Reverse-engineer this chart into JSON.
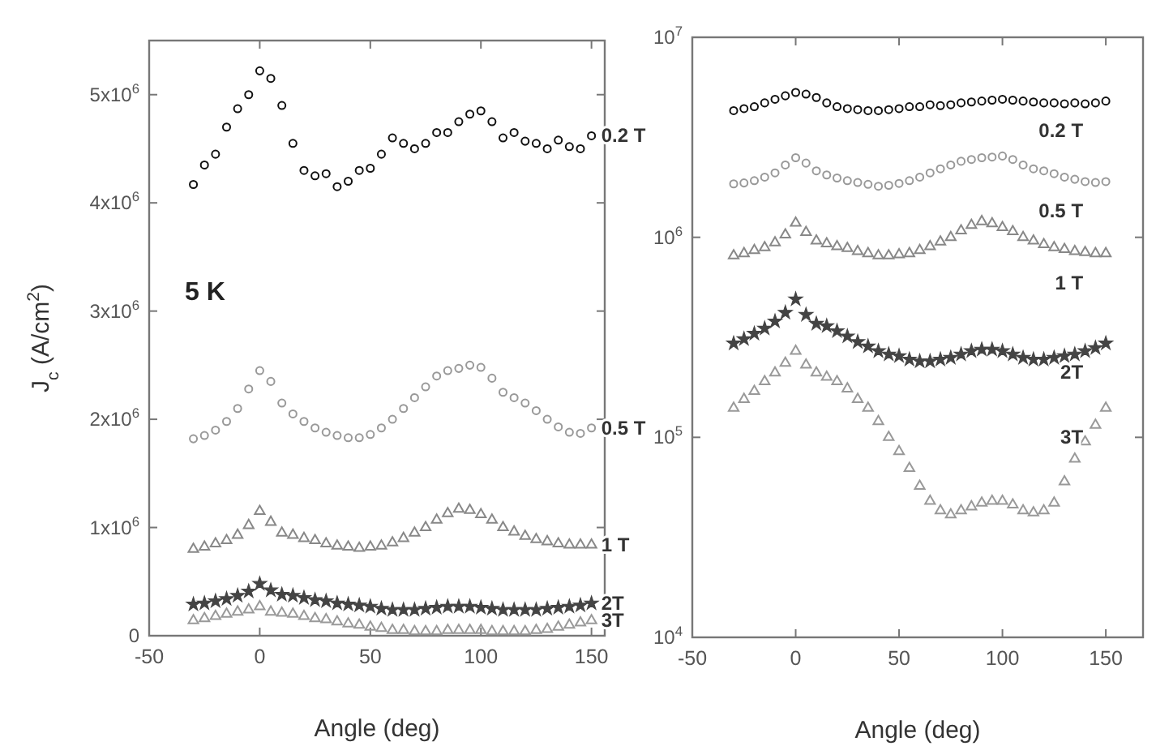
{
  "chart_data": [
    {
      "type": "scatter",
      "xlabel": "Angle (deg)",
      "ylabel": "J$_{c}$ (A/cm$^{2}$)",
      "annotations": [
        "5 K"
      ],
      "xlim": [
        -50,
        156
      ],
      "xticks": [
        -50,
        0,
        50,
        100,
        150
      ],
      "ylim": [
        0,
        5500000.0
      ],
      "yticks": [
        0,
        {
          "value": 1000000.0,
          "label": "1x10$^{6}$"
        },
        {
          "value": 2000000.0,
          "label": "2x10$^{6}$"
        },
        {
          "value": 3000000.0,
          "label": "3x10$^{6}$"
        },
        {
          "value": 4000000.0,
          "label": "4x10$^{6}$"
        },
        {
          "value": 5000000.0,
          "label": "5x10$^{6}$"
        }
      ],
      "grid": false,
      "x": [
        -30,
        -25,
        -20,
        -15,
        -10,
        -5,
        0,
        5,
        10,
        15,
        20,
        25,
        30,
        35,
        40,
        45,
        50,
        55,
        60,
        65,
        70,
        75,
        80,
        85,
        90,
        95,
        100,
        105,
        110,
        115,
        120,
        125,
        130,
        135,
        140,
        145,
        150
      ],
      "series": [
        {
          "name": "0.2 T",
          "color": "#111111",
          "marker": "circle",
          "values": [
            4170000.0,
            4350000.0,
            4450000.0,
            4700000.0,
            4870000.0,
            5000000.0,
            5220000.0,
            5150000.0,
            4900000.0,
            4550000.0,
            4300000.0,
            4250000.0,
            4270000.0,
            4150000.0,
            4200000.0,
            4300000.0,
            4320000.0,
            4450000.0,
            4600000.0,
            4550000.0,
            4500000.0,
            4550000.0,
            4650000.0,
            4650000.0,
            4750000.0,
            4820000.0,
            4850000.0,
            4750000.0,
            4600000.0,
            4650000.0,
            4570000.0,
            4550000.0,
            4500000.0,
            4580000.0,
            4520000.0,
            4500000.0,
            4620000.0
          ]
        },
        {
          "name": "0.5 T",
          "color": "#999999",
          "marker": "circle",
          "values": [
            1820000.0,
            1850000.0,
            1900000.0,
            1980000.0,
            2100000.0,
            2280000.0,
            2450000.0,
            2350000.0,
            2150000.0,
            2050000.0,
            1980000.0,
            1920000.0,
            1880000.0,
            1850000.0,
            1830000.0,
            1830000.0,
            1860000.0,
            1920000.0,
            2000000.0,
            2100000.0,
            2200000.0,
            2300000.0,
            2400000.0,
            2450000.0,
            2470000.0,
            2500000.0,
            2480000.0,
            2380000.0,
            2250000.0,
            2200000.0,
            2150000.0,
            2080000.0,
            2000000.0,
            1930000.0,
            1880000.0,
            1870000.0,
            1920000.0
          ]
        },
        {
          "name": "1 T",
          "color": "#888888",
          "marker": "triangle",
          "values": [
            800000.0,
            820000.0,
            850000.0,
            880000.0,
            930000.0,
            1020000.0,
            1150000.0,
            1050000.0,
            950000.0,
            930000.0,
            900000.0,
            880000.0,
            850000.0,
            830000.0,
            820000.0,
            810000.0,
            820000.0,
            830000.0,
            860000.0,
            900000.0,
            950000.0,
            1000000.0,
            1070000.0,
            1130000.0,
            1170000.0,
            1160000.0,
            1120000.0,
            1070000.0,
            1000000.0,
            960000.0,
            920000.0,
            890000.0,
            870000.0,
            850000.0,
            840000.0,
            840000.0,
            840000.0
          ]
        },
        {
          "name": "2T",
          "color": "#444444",
          "marker": "star",
          "values": [
            290000.0,
            300000.0,
            320000.0,
            340000.0,
            370000.0,
            410000.0,
            480000.0,
            420000.0,
            380000.0,
            370000.0,
            350000.0,
            330000.0,
            320000.0,
            300000.0,
            290000.0,
            280000.0,
            270000.0,
            250000.0,
            240000.0,
            240000.0,
            240000.0,
            250000.0,
            260000.0,
            270000.0,
            270000.0,
            270000.0,
            260000.0,
            250000.0,
            240000.0,
            240000.0,
            240000.0,
            240000.0,
            250000.0,
            260000.0,
            270000.0,
            280000.0,
            300000.0
          ]
        },
        {
          "name": "3T",
          "color": "#999999",
          "marker": "triangle",
          "values": [
            140000.0,
            160000.0,
            180000.0,
            200000.0,
            220000.0,
            240000.0,
            270000.0,
            220000.0,
            210000.0,
            200000.0,
            180000.0,
            160000.0,
            150000.0,
            130000.0,
            110000.0,
            100000.0,
            80000.0,
            70000.0,
            50000.0,
            50000.0,
            40000.0,
            40000.0,
            40000.0,
            50000.0,
            50000.0,
            50000.0,
            50000.0,
            40000.0,
            40000.0,
            40000.0,
            40000.0,
            50000.0,
            60000.0,
            80000.0,
            100000.0,
            120000.0,
            140000.0
          ]
        }
      ]
    },
    {
      "type": "scatter",
      "xlabel": "Angle (deg)",
      "log": "y",
      "xlim": [
        -50,
        168
      ],
      "xticks": [
        -50,
        0,
        50,
        100,
        150
      ],
      "ylim": [
        10000.0,
        10000000.0
      ],
      "yticks": [
        {
          "value": 10000.0,
          "label": "10$^{4}$"
        },
        {
          "value": 100000.0,
          "label": "10$^{5}$"
        },
        {
          "value": 1000000.0,
          "label": "10$^{6}$"
        },
        {
          "value": 10000000.0,
          "label": "10$^{7}$"
        }
      ],
      "grid": false,
      "x": [
        -30,
        -25,
        -20,
        -15,
        -10,
        -5,
        0,
        5,
        10,
        15,
        20,
        25,
        30,
        35,
        40,
        45,
        50,
        55,
        60,
        65,
        70,
        75,
        80,
        85,
        90,
        95,
        100,
        105,
        110,
        115,
        120,
        125,
        130,
        135,
        140,
        145,
        150
      ],
      "series": [
        {
          "name": "0.2 T",
          "color": "#111111",
          "marker": "circle",
          "values": [
            4300000.0,
            4400000.0,
            4500000.0,
            4700000.0,
            4900000.0,
            5100000.0,
            5300000.0,
            5200000.0,
            5000000.0,
            4700000.0,
            4500000.0,
            4400000.0,
            4350000.0,
            4300000.0,
            4300000.0,
            4350000.0,
            4400000.0,
            4500000.0,
            4500000.0,
            4600000.0,
            4550000.0,
            4600000.0,
            4700000.0,
            4750000.0,
            4800000.0,
            4850000.0,
            4900000.0,
            4850000.0,
            4800000.0,
            4750000.0,
            4700000.0,
            4700000.0,
            4650000.0,
            4700000.0,
            4650000.0,
            4700000.0,
            4800000.0
          ]
        },
        {
          "name": "0.5 T",
          "color": "#999999",
          "marker": "circle",
          "values": [
            1850000.0,
            1870000.0,
            1920000.0,
            2000000.0,
            2100000.0,
            2300000.0,
            2500000.0,
            2350000.0,
            2150000.0,
            2050000.0,
            1980000.0,
            1920000.0,
            1880000.0,
            1840000.0,
            1800000.0,
            1820000.0,
            1860000.0,
            1920000.0,
            2000000.0,
            2100000.0,
            2200000.0,
            2300000.0,
            2400000.0,
            2450000.0,
            2500000.0,
            2520000.0,
            2550000.0,
            2450000.0,
            2300000.0,
            2200000.0,
            2150000.0,
            2080000.0,
            2000000.0,
            1950000.0,
            1900000.0,
            1880000.0,
            1900000.0
          ]
        },
        {
          "name": "1 T",
          "color": "#888888",
          "marker": "triangle",
          "values": [
            810000.0,
            830000.0,
            860000.0,
            890000.0,
            940000.0,
            1030000.0,
            1180000.0,
            1060000.0,
            960000.0,
            930000.0,
            900000.0,
            880000.0,
            850000.0,
            830000.0,
            810000.0,
            810000.0,
            820000.0,
            830000.0,
            860000.0,
            900000.0,
            950000.0,
            1000000.0,
            1080000.0,
            1150000.0,
            1200000.0,
            1170000.0,
            1120000.0,
            1070000.0,
            1000000.0,
            960000.0,
            920000.0,
            890000.0,
            870000.0,
            850000.0,
            840000.0,
            830000.0,
            830000.0
          ]
        },
        {
          "name": "2T",
          "color": "#444444",
          "marker": "star",
          "values": [
            295000.0,
            310000.0,
            330000.0,
            350000.0,
            380000.0,
            420000.0,
            490000.0,
            410000.0,
            370000.0,
            360000.0,
            340000.0,
            320000.0,
            300000.0,
            285000.0,
            270000.0,
            260000.0,
            255000.0,
            245000.0,
            240000.0,
            240000.0,
            245000.0,
            250000.0,
            260000.0,
            270000.0,
            275000.0,
            275000.0,
            270000.0,
            260000.0,
            250000.0,
            245000.0,
            245000.0,
            250000.0,
            255000.0,
            260000.0,
            270000.0,
            280000.0,
            295000.0
          ]
        },
        {
          "name": "3T",
          "color": "#999999",
          "marker": "triangle",
          "values": [
            140000.0,
            155000.0,
            170000.0,
            190000.0,
            210000.0,
            235000.0,
            270000.0,
            230000.0,
            210000.0,
            200000.0,
            190000.0,
            175000.0,
            155000.0,
            140000.0,
            120000.0,
            100000.0,
            85000.0,
            70000.0,
            57000.0,
            48000.0,
            43000.0,
            41000.0,
            43000.0,
            45000.0,
            47000.0,
            48000.0,
            48000.0,
            46000.0,
            43000.0,
            42000.0,
            43000.0,
            47000.0,
            60000.0,
            78000.0,
            95000.0,
            115000.0,
            140000.0
          ]
        }
      ]
    }
  ]
}
